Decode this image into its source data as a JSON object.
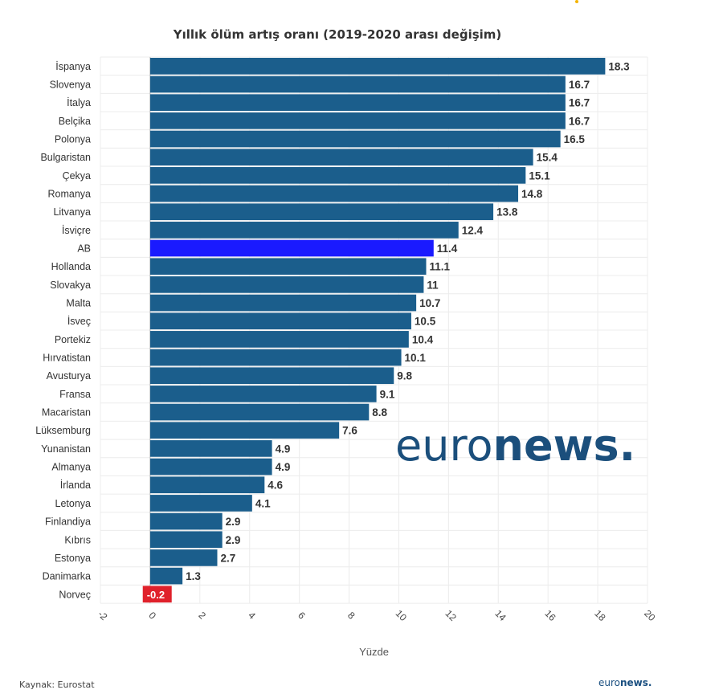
{
  "chart_data": {
    "type": "bar",
    "orientation": "horizontal",
    "title": "Yıllık ölüm artış oranı (2019-2020 arası değişim)",
    "xlabel": "Yüzde",
    "xlim": [
      -2,
      20
    ],
    "xticks": [
      -2,
      0,
      2,
      4,
      6,
      8,
      10,
      12,
      14,
      16,
      18,
      20
    ],
    "grid": true,
    "categories": [
      "İspanya",
      "Slovenya",
      "İtalya",
      "Belçika",
      "Polonya",
      "Bulgaristan",
      "Çekya",
      "Romanya",
      "Litvanya",
      "İsviçre",
      "AB",
      "Hollanda",
      "Slovakya",
      "Malta",
      "İsveç",
      "Portekiz",
      "Hırvatistan",
      "Avusturya",
      "Fransa",
      "Macaristan",
      "Lüksemburg",
      "Yunanistan",
      "Almanya",
      "İrlanda",
      "Letonya",
      "Finlandiya",
      "Kıbrıs",
      "Estonya",
      "Danimarka",
      "Norveç"
    ],
    "values": [
      18.3,
      16.7,
      16.7,
      16.7,
      16.5,
      15.4,
      15.1,
      14.8,
      13.8,
      12.4,
      11.4,
      11.1,
      11,
      10.7,
      10.5,
      10.4,
      10.1,
      9.8,
      9.1,
      8.8,
      7.6,
      4.9,
      4.9,
      4.6,
      4.1,
      2.9,
      2.9,
      2.7,
      1.3,
      -0.2
    ],
    "value_labels": [
      "18.3",
      "16.7",
      "16.7",
      "16.7",
      "16.5",
      "15.4",
      "15.1",
      "14.8",
      "13.8",
      "12.4",
      "11.4",
      "11.1",
      "11",
      "10.7",
      "10.5",
      "10.4",
      "10.1",
      "9.8",
      "9.1",
      "8.8",
      "7.6",
      "4.9",
      "4.9",
      "4.6",
      "4.1",
      "2.9",
      "2.9",
      "2.7",
      "1.3",
      "-0.2"
    ],
    "colors": {
      "default": "#1b5e8c",
      "highlight": "#1a1aff",
      "negative": "#e0212b",
      "highlight_category": "AB"
    }
  },
  "source": "Kaynak: Eurostat",
  "logo": {
    "part1": "euro",
    "part2": "news",
    "dot": "."
  }
}
